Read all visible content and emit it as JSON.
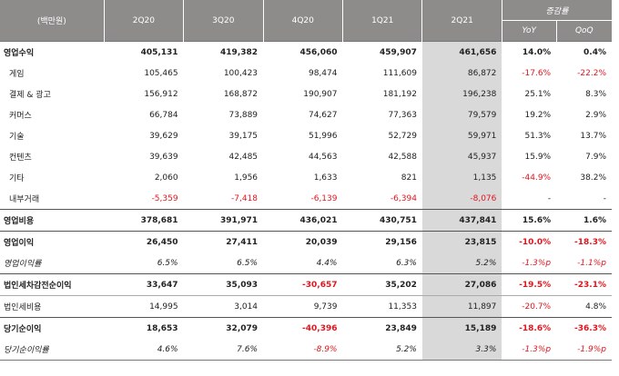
{
  "header": {
    "unit": "(백만원)",
    "periods": [
      "2Q20",
      "3Q20",
      "4Q20",
      "1Q21",
      "2Q21"
    ],
    "change_group": "증감률",
    "yoy": "YoY",
    "qoq": "QoQ"
  },
  "colors": {
    "header_bg": "#8e8b8b",
    "highlight_col": "#d9d9d9",
    "negative": "#e0161f"
  },
  "rows": [
    {
      "label": "영업수익",
      "style": "bold firstrow",
      "values": [
        "405,131",
        "419,382",
        "456,060",
        "459,907",
        "461,656"
      ],
      "yoy": "14.0%",
      "qoq": "0.4%",
      "neg": []
    },
    {
      "label": "게임",
      "style": "sub",
      "values": [
        "105,465",
        "100,423",
        "98,474",
        "111,609",
        "86,872"
      ],
      "yoy": "-17.6%",
      "qoq": "-22.2%",
      "neg": [
        5,
        6
      ]
    },
    {
      "label": "결제 & 광고",
      "style": "sub",
      "values": [
        "156,912",
        "168,872",
        "190,907",
        "181,192",
        "196,238"
      ],
      "yoy": "25.1%",
      "qoq": "8.3%",
      "neg": []
    },
    {
      "label": "커머스",
      "style": "sub",
      "values": [
        "66,784",
        "73,889",
        "74,627",
        "77,363",
        "79,579"
      ],
      "yoy": "19.2%",
      "qoq": "2.9%",
      "neg": []
    },
    {
      "label": "기술",
      "style": "sub",
      "values": [
        "39,629",
        "39,175",
        "51,996",
        "52,729",
        "59,971"
      ],
      "yoy": "51.3%",
      "qoq": "13.7%",
      "neg": []
    },
    {
      "label": "컨텐츠",
      "style": "sub",
      "values": [
        "39,639",
        "42,485",
        "44,563",
        "42,588",
        "45,937"
      ],
      "yoy": "15.9%",
      "qoq": "7.9%",
      "neg": []
    },
    {
      "label": "기타",
      "style": "sub",
      "values": [
        "2,060",
        "1,956",
        "1,633",
        "821",
        "1,135"
      ],
      "yoy": "-44.9%",
      "qoq": "38.2%",
      "neg": [
        5
      ]
    },
    {
      "label": "내부거래",
      "style": "sub",
      "values": [
        "-5,359",
        "-7,418",
        "-6,139",
        "-6,394",
        "-8,076"
      ],
      "yoy": "-",
      "qoq": "-",
      "neg": [
        0,
        1,
        2,
        3,
        4
      ]
    },
    {
      "label": "영업비용",
      "style": "bold sep",
      "values": [
        "378,681",
        "391,971",
        "436,021",
        "430,751",
        "437,841"
      ],
      "yoy": "15.6%",
      "qoq": "1.6%",
      "neg": []
    },
    {
      "label": "영업이익",
      "style": "bold sep",
      "values": [
        "26,450",
        "27,411",
        "20,039",
        "29,156",
        "23,815"
      ],
      "yoy": "-10.0%",
      "qoq": "-18.3%",
      "neg": [
        5,
        6
      ]
    },
    {
      "label": "영업이익률",
      "style": "ital",
      "values": [
        "6.5%",
        "6.5%",
        "4.4%",
        "6.3%",
        "5.2%"
      ],
      "yoy": "-1.3%p",
      "qoq": "-1.1%p",
      "neg": [
        5,
        6
      ]
    },
    {
      "label": "법인세차감전순이익",
      "style": "bold sep",
      "values": [
        "33,647",
        "35,093",
        "-30,657",
        "35,202",
        "27,086"
      ],
      "yoy": "-19.5%",
      "qoq": "-23.1%",
      "neg": [
        2,
        5,
        6
      ]
    },
    {
      "label": "법인세비용",
      "style": "thin",
      "values": [
        "14,995",
        "3,014",
        "9,739",
        "11,353",
        "11,897"
      ],
      "yoy": "-20.7%",
      "qoq": "4.8%",
      "neg": [
        5
      ]
    },
    {
      "label": "당기순이익",
      "style": "bold sep",
      "values": [
        "18,653",
        "32,079",
        "-40,396",
        "23,849",
        "15,189"
      ],
      "yoy": "-18.6%",
      "qoq": "-36.3%",
      "neg": [
        2,
        5,
        6
      ]
    },
    {
      "label": "당기순이익률",
      "style": "ital lastrow",
      "values": [
        "4.6%",
        "7.6%",
        "-8.9%",
        "5.2%",
        "3.3%"
      ],
      "yoy": "-1.3%p",
      "qoq": "-1.9%p",
      "neg": [
        2,
        5,
        6
      ]
    }
  ]
}
